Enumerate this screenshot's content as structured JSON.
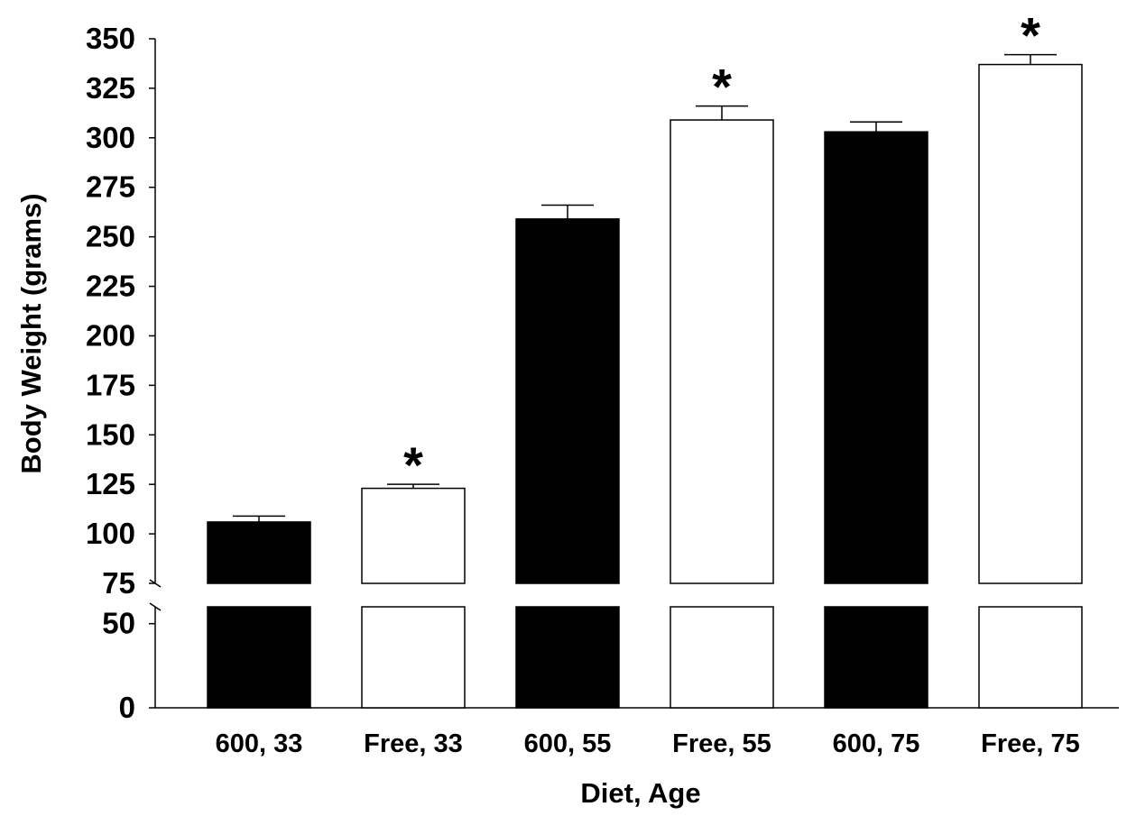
{
  "chart_data": {
    "type": "bar",
    "xlabel": "Diet, Age",
    "ylabel": "Body Weight (grams)",
    "categories": [
      "600, 33",
      "Free, 33",
      "600, 55",
      "Free, 55",
      "600, 75",
      "Free, 75"
    ],
    "values": [
      106,
      123,
      259,
      309,
      303,
      337
    ],
    "errors": [
      3,
      2,
      7,
      7,
      5,
      5
    ],
    "significant": [
      false,
      true,
      false,
      true,
      false,
      true
    ],
    "significance_marker": "*",
    "bar_colors": [
      "#000000",
      "#ffffff",
      "#000000",
      "#ffffff",
      "#000000",
      "#ffffff"
    ],
    "upper_ticks": [
      "350",
      "325",
      "300",
      "275",
      "250",
      "225",
      "200",
      "175",
      "150",
      "125",
      "100",
      "75"
    ],
    "lower_ticks": [
      "50",
      "0"
    ],
    "ylim_upper": [
      75,
      350
    ],
    "ylim_lower": [
      0,
      60
    ],
    "broken_axis": true
  }
}
